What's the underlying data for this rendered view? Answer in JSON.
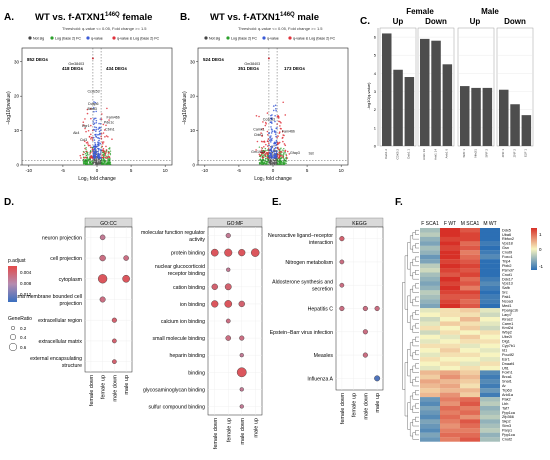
{
  "panels": {
    "A": {
      "letter": "A.",
      "title": "WT vs. f-ATXN1",
      "title_sup": "146Q",
      "title_suffix": " female",
      "threshold": "Threshold: q-value <= 0.05, Fold change >= 1.5",
      "legend": [
        "Not sig",
        "Log (base 2) FC",
        "q-value",
        "q-value & Log (base 2) FC"
      ],
      "counts": [
        "852 DEGs",
        "418 DEGs",
        "434 DEGs"
      ],
      "labels": [
        "Gm38403",
        "Ccdc53",
        "Dusp6",
        "Btbd3",
        "Egr1",
        "Pde1c",
        "Ak4",
        "Cbln1",
        "Fam46b",
        "Ccl3"
      ],
      "xlabel": "Log₂ fold change",
      "ylabel": "−log10(pvalue)",
      "xticks": [
        "-10",
        "-5",
        "0",
        "5",
        "10"
      ],
      "yticks": [
        "0",
        "10",
        "20",
        "30"
      ]
    },
    "B": {
      "letter": "B.",
      "title": "WT vs. f-ATXN1",
      "title_sup": "146Q",
      "title_suffix": " male",
      "threshold": "Threshold: q-value <= 0.05, Fold change >= 1.5",
      "legend": [
        "Not sig",
        "Log (base 2) FC",
        "q-value",
        "q-value & Log (base 2) FC"
      ],
      "counts": [
        "524 DEGs",
        "351 DEGs",
        "173 DEGs"
      ],
      "labels": [
        "Gm38403",
        "Ccdc53",
        "Camk1",
        "Cbln1",
        "Gm1963",
        "Fam46b",
        "Gfap3",
        "Sst"
      ],
      "xlabel": "Log₂ fold change",
      "ylabel": "−log10(pvalue)",
      "xticks": [
        "-10",
        "-5",
        "0",
        "5",
        "10"
      ],
      "yticks": [
        "0",
        "10",
        "20",
        "30"
      ]
    },
    "C": {
      "letter": "C.",
      "groups": [
        "Female",
        "Male"
      ],
      "subgroups": [
        "Up",
        "Down",
        "Up",
        "Down"
      ],
      "ylabel": "-log10(q-value)",
      "yticks": [
        "0",
        "1",
        "2",
        "3",
        "4",
        "5",
        "6"
      ]
    },
    "D": {
      "letter": "D.",
      "cc_header": "GO:CC",
      "mf_header": "GO:MF",
      "legend_title": "p.adjust",
      "legend_ticks": [
        "0.004",
        "0.008",
        "0.012"
      ],
      "size_title": "GeneRatio",
      "size_values": [
        "0.2",
        "0.4",
        "0.6"
      ]
    },
    "E": {
      "letter": "E.",
      "header": "KEGG"
    },
    "F": {
      "letter": "F.",
      "col_labels": [
        "F SCA1",
        "F WT",
        "M SCA1",
        "M WT"
      ],
      "scale": [
        "1",
        "0",
        "-1"
      ]
    }
  },
  "chart_data": [
    {
      "type": "bar",
      "panel": "C",
      "ylim": [
        0,
        6.5
      ],
      "groups": [
        {
          "name": "Female Up",
          "categories": [
            "Dab1 2",
            "CDK5 2",
            "Dab1 1"
          ],
          "values": [
            6.2,
            4.2,
            3.8
          ]
        },
        {
          "name": "Female Down",
          "categories": [
            "Ank1 19",
            "Ank1 14",
            "Ank1 6"
          ],
          "values": [
            5.9,
            5.8,
            4.5
          ]
        },
        {
          "name": "Male Up",
          "categories": [
            "SRF 1",
            "Nfe2l1",
            "SRF 2"
          ],
          "values": [
            3.3,
            3.2,
            3.2
          ]
        },
        {
          "name": "Male Down",
          "categories": [
            "ZNF 1",
            "ZNF 2",
            "E2F 1"
          ],
          "values": [
            3.1,
            2.3,
            1.7
          ]
        }
      ]
    },
    {
      "type": "scatter",
      "panel": "D-CC",
      "x": [
        "female down",
        "female up",
        "male down",
        "male up"
      ],
      "categories": [
        "neuron projection",
        "cell projection",
        "cytoplasm",
        "plasma membrane bounded cell projection",
        "extracellular region",
        "extracellular matrix",
        "external encapsulating structure"
      ],
      "points": [
        {
          "term": "neuron projection",
          "group": "female up",
          "ratio": 0.25,
          "padj": 0.006
        },
        {
          "term": "cell projection",
          "group": "female up",
          "ratio": 0.35,
          "padj": 0.005
        },
        {
          "term": "cell projection",
          "group": "male up",
          "ratio": 0.25,
          "padj": 0.005
        },
        {
          "term": "cytoplasm",
          "group": "female up",
          "ratio": 0.7,
          "padj": 0.003
        },
        {
          "term": "cytoplasm",
          "group": "male up",
          "ratio": 0.5,
          "padj": 0.003
        },
        {
          "term": "plasma membrane bounded cell projection",
          "group": "female up",
          "ratio": 0.3,
          "padj": 0.005
        },
        {
          "term": "extracellular region",
          "group": "male down",
          "ratio": 0.2,
          "padj": 0.004
        },
        {
          "term": "extracellular matrix",
          "group": "male down",
          "ratio": 0.15,
          "padj": 0.004
        },
        {
          "term": "external encapsulating structure",
          "group": "male down",
          "ratio": 0.15,
          "padj": 0.004
        }
      ]
    },
    {
      "type": "scatter",
      "panel": "D-MF",
      "x": [
        "female down",
        "female up",
        "male down",
        "male up"
      ],
      "categories": [
        "molecular function regulator activity",
        "protein binding",
        "nuclear glucocorticoid receptor binding",
        "cation binding",
        "ion binding",
        "calcium ion binding",
        "small molecule binding",
        "heparin binding",
        "binding",
        "glycosaminoglycan binding",
        "sulfur compound binding"
      ],
      "points": [
        {
          "term": "molecular function regulator activity",
          "group": "female up",
          "ratio": 0.2,
          "padj": 0.006
        },
        {
          "term": "protein binding",
          "group": "female down",
          "ratio": 0.5,
          "padj": 0.003
        },
        {
          "term": "protein binding",
          "group": "female up",
          "ratio": 0.55,
          "padj": 0.003
        },
        {
          "term": "protein binding",
          "group": "male down",
          "ratio": 0.45,
          "padj": 0.003
        },
        {
          "term": "protein binding",
          "group": "male up",
          "ratio": 0.6,
          "padj": 0.003
        },
        {
          "term": "nuclear glucocorticoid receptor binding",
          "group": "female up",
          "ratio": 0.1,
          "padj": 0.006
        },
        {
          "term": "cation binding",
          "group": "female down",
          "ratio": 0.35,
          "padj": 0.004
        },
        {
          "term": "cation binding",
          "group": "female up",
          "ratio": 0.4,
          "padj": 0.004
        },
        {
          "term": "ion binding",
          "group": "female down",
          "ratio": 0.45,
          "padj": 0.003
        },
        {
          "term": "ion binding",
          "group": "female up",
          "ratio": 0.5,
          "padj": 0.003
        },
        {
          "term": "ion binding",
          "group": "male down",
          "ratio": 0.35,
          "padj": 0.004
        },
        {
          "term": "calcium ion binding",
          "group": "female up",
          "ratio": 0.15,
          "padj": 0.005
        },
        {
          "term": "small molecule binding",
          "group": "female up",
          "ratio": 0.25,
          "padj": 0.005
        },
        {
          "term": "small molecule binding",
          "group": "male down",
          "ratio": 0.2,
          "padj": 0.005
        },
        {
          "term": "heparin binding",
          "group": "male down",
          "ratio": 0.1,
          "padj": 0.006
        },
        {
          "term": "binding",
          "group": "male down",
          "ratio": 0.75,
          "padj": 0.003
        },
        {
          "term": "glycosaminoglycan binding",
          "group": "male down",
          "ratio": 0.1,
          "padj": 0.006
        },
        {
          "term": "sulfur compound binding",
          "group": "male down",
          "ratio": 0.1,
          "padj": 0.006
        }
      ]
    },
    {
      "type": "scatter",
      "panel": "E",
      "x": [
        "female down",
        "female up",
        "male down",
        "male up"
      ],
      "categories": [
        "Neuroactive ligand−receptor interaction",
        "Nitrogen metabolism",
        "Aldosterone synthesis and secretion",
        "Hepatitis C",
        "Epstein−Barr virus infection",
        "Measles",
        "Influenza A"
      ],
      "points": [
        {
          "term": "Neuroactive ligand−receptor interaction",
          "group": "female down",
          "ratio": 0.2,
          "padj": 0.004
        },
        {
          "term": "Nitrogen metabolism",
          "group": "female down",
          "ratio": 0.15,
          "padj": 0.005
        },
        {
          "term": "Aldosterone synthesis and secretion",
          "group": "female down",
          "ratio": 0.15,
          "padj": 0.005
        },
        {
          "term": "Hepatitis C",
          "group": "female down",
          "ratio": 0.2,
          "padj": 0.005
        },
        {
          "term": "Hepatitis C",
          "group": "male down",
          "ratio": 0.2,
          "padj": 0.005
        },
        {
          "term": "Hepatitis C",
          "group": "male up",
          "ratio": 0.2,
          "padj": 0.005
        },
        {
          "term": "Epstein−Barr virus infection",
          "group": "male down",
          "ratio": 0.2,
          "padj": 0.005
        },
        {
          "term": "Measles",
          "group": "male down",
          "ratio": 0.2,
          "padj": 0.005
        },
        {
          "term": "Influenza A",
          "group": "male up",
          "ratio": 0.3,
          "padj": 0.012
        }
      ]
    },
    {
      "type": "heatmap",
      "panel": "F",
      "columns": [
        "F SCA1",
        "F WT",
        "M SCA1",
        "M WT"
      ],
      "rows": [
        "Ddx5",
        "Uba6",
        "Rbfox2",
        "Vps18",
        "Gsn",
        "Cnot9",
        "Foxo1",
        "Trip4",
        "Plxb2",
        "Psmd7",
        "Cnot1",
        "Ddx17",
        "Vps13",
        "Safb",
        "Src",
        "Pak1",
        "Ncoa3",
        "Med1",
        "Ppargc1b",
        "Larp7",
        "Kiras2",
        "Carm1",
        "Kmt2d",
        "Wbp2",
        "Ube2i",
        "Dlg1",
        "Cyp7b1",
        "Id1",
        "Pou4f2",
        "Esr1",
        "Dnaaf4",
        "Ufl1",
        "Foxh1",
        "Brca1",
        "Snai1",
        "Ar",
        "Trp63",
        "Arid1a",
        "Pak2",
        "Lbh",
        "Taf7",
        "Ppp1ca",
        "Zfp366",
        "Skp2",
        "Strn3",
        "Parp1",
        "Ppp1ca",
        "Cnot2"
      ],
      "values": [
        [
          -0.4,
          1.0,
          0.8,
          -1.0
        ],
        [
          -0.3,
          1.0,
          0.9,
          -1.0
        ],
        [
          -0.5,
          0.9,
          0.9,
          -1.0
        ],
        [
          -0.6,
          1.0,
          0.7,
          -0.9
        ],
        [
          -0.4,
          0.9,
          0.8,
          -1.0
        ],
        [
          -0.5,
          1.0,
          0.6,
          -0.9
        ],
        [
          -0.7,
          1.0,
          0.7,
          -0.8
        ],
        [
          -0.6,
          0.9,
          0.8,
          -1.0
        ],
        [
          -0.3,
          1.0,
          0.9,
          -1.0
        ],
        [
          -0.2,
          0.9,
          0.8,
          -1.0
        ],
        [
          -0.4,
          0.8,
          0.9,
          -1.0
        ],
        [
          -0.5,
          1.0,
          0.7,
          -0.9
        ],
        [
          -0.6,
          0.9,
          0.8,
          -0.8
        ],
        [
          -0.5,
          1.0,
          0.6,
          -0.9
        ],
        [
          -0.3,
          0.9,
          0.9,
          -1.0
        ],
        [
          -0.4,
          0.8,
          0.8,
          -0.9
        ],
        [
          -0.5,
          0.9,
          0.7,
          -0.9
        ],
        [
          -0.6,
          1.0,
          0.8,
          -1.0
        ],
        [
          -0.1,
          0.1,
          0.2,
          -0.1
        ],
        [
          0.0,
          0.1,
          0.1,
          -0.2
        ],
        [
          -0.2,
          0.0,
          0.3,
          0.0
        ],
        [
          -0.1,
          0.2,
          0.1,
          -0.1
        ],
        [
          0.1,
          0.0,
          0.2,
          -0.2
        ],
        [
          -0.2,
          0.1,
          0.0,
          0.1
        ],
        [
          0.0,
          -0.1,
          0.2,
          0.0
        ],
        [
          -0.1,
          0.0,
          0.1,
          0.1
        ],
        [
          0.1,
          0.1,
          -0.1,
          0.0
        ],
        [
          0.0,
          0.2,
          0.0,
          -0.1
        ],
        [
          -0.1,
          0.1,
          0.1,
          0.0
        ],
        [
          0.1,
          0.0,
          0.0,
          -0.1
        ],
        [
          0.0,
          0.1,
          -0.1,
          0.1
        ],
        [
          -0.1,
          0.0,
          0.1,
          0.0
        ],
        [
          0.3,
          0.4,
          0.2,
          -0.8
        ],
        [
          0.2,
          0.5,
          0.3,
          -0.9
        ],
        [
          0.4,
          0.3,
          0.2,
          -0.8
        ],
        [
          0.3,
          0.4,
          0.1,
          -0.9
        ],
        [
          0.2,
          0.3,
          0.3,
          -0.7
        ],
        [
          0.3,
          0.5,
          0.2,
          -0.9
        ],
        [
          -0.7,
          0.6,
          0.7,
          -0.4
        ],
        [
          -0.8,
          0.5,
          0.8,
          -0.3
        ],
        [
          -0.6,
          0.7,
          0.6,
          -0.5
        ],
        [
          -0.7,
          0.6,
          0.7,
          -0.4
        ],
        [
          -0.8,
          0.7,
          0.5,
          -0.3
        ],
        [
          -0.6,
          0.6,
          0.8,
          -0.5
        ],
        [
          -0.7,
          0.5,
          0.7,
          -0.4
        ],
        [
          -0.8,
          0.6,
          0.6,
          -0.3
        ],
        [
          -0.6,
          0.7,
          0.7,
          -0.5
        ],
        [
          -0.7,
          0.6,
          0.8,
          -0.4
        ]
      ]
    }
  ]
}
